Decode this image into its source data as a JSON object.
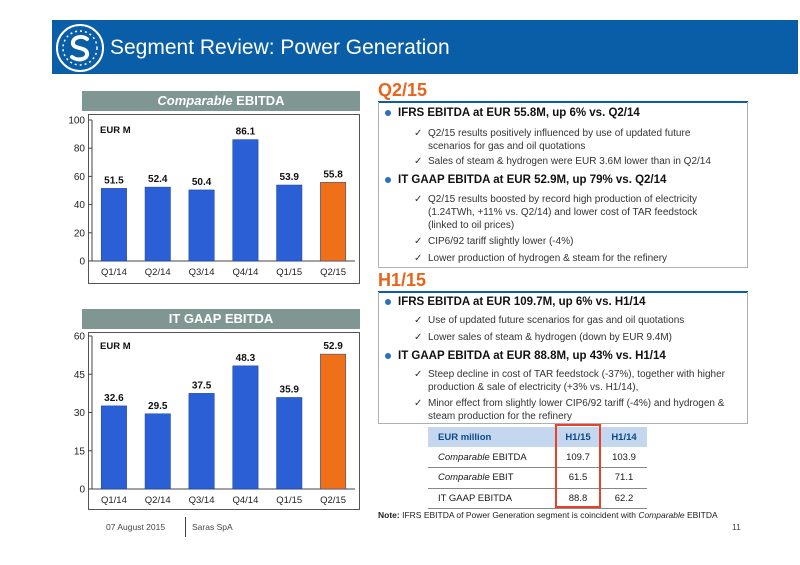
{
  "header": {
    "title": "Segment Review: Power Generation"
  },
  "chart1": {
    "title_italic": "Comparable",
    "title_rest": " EBITDA",
    "unit": "EUR M"
  },
  "chart2": {
    "title": "IT GAAP EBITDA",
    "unit": "EUR M"
  },
  "chart_data": [
    {
      "type": "bar",
      "title": "Comparable EBITDA",
      "unit": "EUR M",
      "categories": [
        "Q1/14",
        "Q2/14",
        "Q3/14",
        "Q4/14",
        "Q1/15",
        "Q2/15"
      ],
      "values": [
        51.5,
        52.4,
        50.4,
        86.1,
        53.9,
        55.8
      ],
      "labels": [
        "51.5",
        "52.4",
        "50.4",
        "86.1",
        "53.9",
        "55.8"
      ],
      "ylim": [
        0,
        100
      ],
      "yticks": [
        "0",
        "20",
        "40",
        "60",
        "80",
        "100"
      ],
      "colors": [
        "#2a5fd6",
        "#2a5fd6",
        "#2a5fd6",
        "#2a5fd6",
        "#2a5fd6",
        "#f07018"
      ]
    },
    {
      "type": "bar",
      "title": "IT GAAP EBITDA",
      "unit": "EUR M",
      "categories": [
        "Q1/14",
        "Q2/14",
        "Q3/14",
        "Q4/14",
        "Q1/15",
        "Q2/15"
      ],
      "values": [
        32.6,
        29.5,
        37.5,
        48.3,
        35.9,
        52.9
      ],
      "labels": [
        "32.6",
        "29.5",
        "37.5",
        "48.3",
        "35.9",
        "52.9"
      ],
      "ylim": [
        0,
        60
      ],
      "yticks": [
        "0",
        "15",
        "30",
        "45",
        "60"
      ],
      "colors": [
        "#2a5fd6",
        "#2a5fd6",
        "#2a5fd6",
        "#2a5fd6",
        "#2a5fd6",
        "#f07018"
      ]
    }
  ],
  "q2": {
    "heading": "Q2/15",
    "b1": "IFRS EBITDA at EUR 55.8M, up 6% vs. Q2/14",
    "b1_sub1": "Q2/15 results positively influenced by use of updated future scenarios for gas and oil quotations",
    "b1_sub2": "Sales of steam & hydrogen were EUR 3.6M lower than in Q2/14",
    "b2": "IT GAAP EBITDA at EUR 52.9M, up 79% vs. Q2/14",
    "b2_sub1": "Q2/15 results boosted by record high production of electricity (1.24TWh, +11% vs. Q2/14) and lower cost of TAR feedstock (linked to oil prices)",
    "b2_sub2": "CIP6/92 tariff slightly lower (-4%)",
    "b2_sub3": "Lower production of hydrogen & steam for the refinery"
  },
  "h1": {
    "heading": "H1/15",
    "b1": "IFRS EBITDA at EUR 109.7M, up 6% vs. H1/14",
    "b1_sub1": "Use of updated future scenarios for gas and oil quotations",
    "b1_sub2": "Lower sales of steam & hydrogen (down by EUR 9.4M)",
    "b2": "IT GAAP EBITDA at EUR 88.8M, up 43% vs. H1/14",
    "b2_sub1": "Steep decline in cost of TAR feedstock (-37%), together with higher production & sale of electricity (+3% vs. H1/14),",
    "b2_sub2": "Minor effect from slightly lower CIP6/92 tariff (-4%) and hydrogen & steam production for the refinery"
  },
  "table": {
    "headers": [
      "EUR million",
      "H1/15",
      "H1/14"
    ],
    "rows": [
      {
        "label_italic": "Comparable",
        "label_rest": " EBITDA",
        "h115": "109.7",
        "h114": "103.9"
      },
      {
        "label_italic": "Comparable",
        "label_rest": " EBIT",
        "h115": "61.5",
        "h114": "71.1"
      },
      {
        "label_italic": "",
        "label_rest": "IT GAAP EBITDA",
        "h115": "88.8",
        "h114": "62.2"
      }
    ]
  },
  "note": {
    "label": "Note:",
    "text": " IFRS EBITDA of Power Generation segment is coincident with ",
    "italic": "Comparable",
    "end": " EBITDA"
  },
  "footer": {
    "date": "07 August 2015",
    "company": "Saras SpA",
    "page": "11"
  },
  "check": "✓"
}
